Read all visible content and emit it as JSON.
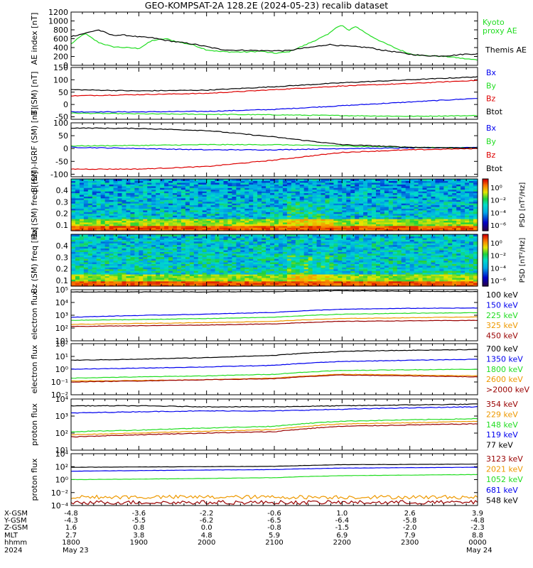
{
  "title": "GEO-KOMPSAT-2A 128.2E (2024-05-23) recalib dataset",
  "colors": {
    "black": "#000000",
    "green": "#22dd22",
    "blue": "#0000ee",
    "red": "#dd0000",
    "orange": "#ee9900",
    "darkred": "#990000"
  },
  "chart_data": [
    {
      "type": "line",
      "ylabel": "AE index [nT]",
      "ylim": [
        0,
        1200
      ],
      "yticks": [
        "0",
        "200",
        "400",
        "600",
        "800",
        "1000",
        "1200"
      ],
      "series": [
        {
          "name": "Kyoto proxy AE",
          "color": "green",
          "x": [
            18.0,
            18.2,
            18.4,
            18.6,
            18.8,
            19.0,
            19.2,
            19.4,
            19.6,
            19.8,
            20.0,
            20.2,
            20.4,
            20.6,
            20.8,
            21.0,
            21.2,
            21.4,
            21.6,
            21.8,
            21.9,
            22.0,
            22.1,
            22.2,
            22.3,
            22.4,
            22.6,
            22.8,
            23.0,
            23.2,
            23.4,
            23.6,
            23.8,
            24.0
          ],
          "y": [
            480,
            720,
            520,
            420,
            400,
            380,
            560,
            600,
            520,
            460,
            350,
            310,
            300,
            300,
            320,
            270,
            300,
            420,
            560,
            700,
            850,
            900,
            780,
            880,
            780,
            680,
            520,
            380,
            260,
            220,
            210,
            190,
            150,
            120
          ]
        },
        {
          "name": "Themis AE",
          "color": "black",
          "x": [
            18.0,
            18.2,
            18.4,
            18.6,
            18.8,
            19.0,
            19.2,
            19.4,
            19.6,
            19.8,
            20.0,
            20.2,
            20.4,
            20.6,
            20.8,
            21.0,
            21.2,
            21.4,
            21.6,
            21.8,
            22.0,
            22.2,
            22.4,
            22.6,
            22.8,
            23.0,
            23.2,
            23.4,
            23.6,
            23.8,
            24.0
          ],
          "y": [
            650,
            720,
            800,
            680,
            680,
            640,
            620,
            560,
            520,
            480,
            420,
            360,
            340,
            340,
            330,
            330,
            330,
            380,
            420,
            470,
            440,
            420,
            400,
            340,
            300,
            250,
            220,
            210,
            220,
            250,
            260
          ]
        }
      ],
      "legend": [
        "Kyoto proxy AE",
        "Themis AE"
      ]
    },
    {
      "type": "line",
      "ylabel": "B (SM) [nT]",
      "ylim": [
        -60,
        150
      ],
      "yticks": [
        "-50",
        "0",
        "50",
        "100",
        "150"
      ],
      "series": [
        {
          "name": "Bx",
          "color": "blue",
          "x": [
            18,
            19,
            20,
            21,
            22,
            23,
            24
          ],
          "y": [
            -30,
            -30,
            -28,
            -20,
            -5,
            10,
            25
          ]
        },
        {
          "name": "By",
          "color": "green",
          "x": [
            18,
            19,
            20,
            21,
            22,
            23,
            24
          ],
          "y": [
            -35,
            -38,
            -40,
            -42,
            -45,
            -48,
            -45
          ]
        },
        {
          "name": "Bz",
          "color": "red",
          "x": [
            18,
            19,
            20,
            21,
            22,
            23,
            24
          ],
          "y": [
            35,
            40,
            45,
            60,
            75,
            85,
            98
          ]
        },
        {
          "name": "Btot",
          "color": "black",
          "x": [
            18,
            19,
            20,
            21,
            22,
            23,
            24
          ],
          "y": [
            60,
            55,
            58,
            72,
            88,
            100,
            112
          ]
        }
      ],
      "legend": [
        "Bx",
        "By",
        "Bz",
        "Btot"
      ]
    },
    {
      "type": "line",
      "ylabel": "B (SM)-IGRF (SM) [nT]",
      "ylim": [
        -110,
        100
      ],
      "yticks": [
        "-100",
        "-50",
        "0",
        "50",
        "100"
      ],
      "series": [
        {
          "name": "Bx",
          "color": "blue",
          "x": [
            18,
            19,
            20,
            21,
            22,
            23,
            24
          ],
          "y": [
            5,
            0,
            -5,
            -5,
            0,
            2,
            5
          ]
        },
        {
          "name": "By",
          "color": "green",
          "x": [
            18,
            19,
            20,
            21,
            22,
            23,
            24
          ],
          "y": [
            10,
            12,
            15,
            15,
            10,
            5,
            2
          ]
        },
        {
          "name": "Bz",
          "color": "red",
          "x": [
            18,
            19,
            20,
            21,
            22,
            23,
            24
          ],
          "y": [
            -80,
            -80,
            -70,
            -45,
            -15,
            -5,
            0
          ]
        },
        {
          "name": "Btot",
          "color": "black",
          "x": [
            18,
            19,
            20,
            21,
            22,
            23,
            24
          ],
          "y": [
            80,
            78,
            70,
            45,
            15,
            5,
            2
          ]
        }
      ],
      "legend": [
        "Bx",
        "By",
        "Bz",
        "Btot"
      ]
    },
    {
      "type": "heatmap",
      "ylabel": "Bx (SM) freq [Hz]",
      "ylim": [
        0.05,
        0.5
      ],
      "yticks": [
        "0.1",
        "0.2",
        "0.3",
        "0.4"
      ],
      "colorbar": {
        "label": "PSD [nT²/Hz]",
        "ticks": [
          "10⁰",
          "10⁻²",
          "10⁻⁴",
          "10⁻⁶"
        ]
      }
    },
    {
      "type": "heatmap",
      "ylabel": "Bz (SM) freq [Hz]",
      "ylim": [
        0.05,
        0.5
      ],
      "yticks": [
        "0.1",
        "0.2",
        "0.3",
        "0.4"
      ],
      "colorbar": {
        "label": "PSD [nT²/Hz]",
        "ticks": [
          "10⁰",
          "10⁻²",
          "10⁻⁴",
          "10⁻⁶"
        ]
      }
    },
    {
      "type": "line",
      "ylabel": "electron flux",
      "yscale": "log",
      "ylim": [
        1,
        100000
      ],
      "yticks": [
        "10¹",
        "10²",
        "10³",
        "10⁴",
        "10⁵"
      ],
      "series": [
        {
          "name": "100 keV",
          "color": "black",
          "x": [
            18,
            19,
            20,
            21,
            22,
            23,
            24
          ],
          "y": [
            60000,
            60000,
            60000,
            65000,
            80000,
            70000,
            65000
          ]
        },
        {
          "name": "150 keV",
          "color": "blue",
          "x": [
            18,
            19,
            20,
            21,
            22,
            23,
            24
          ],
          "y": [
            200,
            300,
            400,
            600,
            1200,
            1500,
            1600
          ]
        },
        {
          "name": "225 keV",
          "color": "green",
          "x": [
            18,
            19,
            20,
            21,
            22,
            23,
            24
          ],
          "y": [
            100,
            120,
            150,
            200,
            400,
            500,
            550
          ]
        },
        {
          "name": "325 keV",
          "color": "orange",
          "x": [
            18,
            19,
            20,
            21,
            22,
            23,
            24
          ],
          "y": [
            40,
            50,
            60,
            80,
            150,
            180,
            220
          ]
        },
        {
          "name": "450 keV",
          "color": "darkred",
          "x": [
            18,
            19,
            20,
            21,
            22,
            23,
            24
          ],
          "y": [
            25,
            30,
            35,
            45,
            80,
            90,
            100
          ]
        }
      ],
      "legend": [
        "100 keV",
        "150 keV",
        "225 keV",
        "325 keV",
        "450 keV"
      ]
    },
    {
      "type": "line",
      "ylabel": "electron flux",
      "yscale": "log",
      "ylim": [
        0.01,
        100
      ],
      "yticks": [
        "10⁻²",
        "10⁻¹",
        "10⁰",
        "10¹",
        "10²"
      ],
      "series": [
        {
          "name": "700 keV",
          "color": "black",
          "x": [
            18,
            19,
            20,
            21,
            22,
            23,
            24
          ],
          "y": [
            5,
            6,
            8,
            12,
            25,
            30,
            35
          ]
        },
        {
          "name": "1350 keV",
          "color": "blue",
          "x": [
            18,
            19,
            20,
            21,
            22,
            23,
            24
          ],
          "y": [
            1,
            1.2,
            1.5,
            2,
            4,
            5,
            6
          ]
        },
        {
          "name": "1800 keV",
          "color": "green",
          "x": [
            18,
            19,
            20,
            21,
            22,
            23,
            24
          ],
          "y": [
            0.2,
            0.25,
            0.3,
            0.4,
            0.8,
            0.9,
            1
          ]
        },
        {
          "name": "2600 keV",
          "color": "orange",
          "x": [
            18,
            19,
            20,
            21,
            22,
            23,
            24
          ],
          "y": [
            0.12,
            0.13,
            0.15,
            0.2,
            0.4,
            0.35,
            0.3
          ]
        },
        {
          "name": ">2000 keV",
          "color": "darkred",
          "x": [
            18,
            19,
            20,
            21,
            22,
            23,
            24
          ],
          "y": [
            0.1,
            0.12,
            0.15,
            0.18,
            0.35,
            0.3,
            0.25
          ]
        }
      ],
      "legend": [
        "700 keV",
        "1350 keV",
        "1800 keV",
        "2600 keV",
        ">2000 keV"
      ]
    },
    {
      "type": "line",
      "ylabel": "proton flux",
      "yscale": "log",
      "ylim": [
        10,
        10000
      ],
      "yticks": [
        "10¹",
        "10²",
        "10³",
        "10⁴"
      ],
      "series": [
        {
          "name": "354 keV",
          "color": "darkred",
          "x": [
            18,
            19,
            20,
            21,
            22,
            23,
            24
          ],
          "y": [
            60,
            80,
            100,
            120,
            250,
            300,
            350
          ]
        },
        {
          "name": "229 keV",
          "color": "orange",
          "x": [
            18,
            19,
            20,
            21,
            22,
            23,
            24
          ],
          "y": [
            80,
            100,
            130,
            160,
            350,
            400,
            500
          ]
        },
        {
          "name": "148 keV",
          "color": "green",
          "x": [
            18,
            19,
            20,
            21,
            22,
            23,
            24
          ],
          "y": [
            120,
            150,
            200,
            250,
            500,
            600,
            700
          ]
        },
        {
          "name": "119 keV",
          "color": "blue",
          "x": [
            18,
            19,
            20,
            21,
            22,
            23,
            24
          ],
          "y": [
            1500,
            1800,
            2000,
            2000,
            2500,
            3000,
            3500
          ]
        },
        {
          "name": "77 keV",
          "color": "black",
          "x": [
            18,
            19,
            20,
            21,
            22,
            23,
            24
          ],
          "y": [
            4000,
            4000,
            3500,
            3500,
            4000,
            4500,
            5000
          ]
        }
      ],
      "legend": [
        "354 keV",
        "229 keV",
        "148 keV",
        "119 keV",
        "77 keV"
      ]
    },
    {
      "type": "line",
      "ylabel": "proton flux",
      "yscale": "log",
      "ylim": [
        0.0001,
        10000
      ],
      "yticks": [
        "10⁻⁴",
        "10⁻²",
        "10⁰",
        "10²",
        "10⁴"
      ],
      "series": [
        {
          "name": "3123 keV",
          "color": "darkred",
          "x": [
            18,
            19,
            20,
            21,
            22,
            23,
            24
          ],
          "y": [
            0.0003,
            0.0003,
            0.0003,
            0.0003,
            0.0003,
            0.0003,
            0.0003
          ]
        },
        {
          "name": "2021 keV",
          "color": "orange",
          "x": [
            18,
            19,
            20,
            21,
            22,
            23,
            24
          ],
          "y": [
            0.002,
            0.002,
            0.002,
            0.002,
            0.002,
            0.002,
            0.002
          ]
        },
        {
          "name": "1052 keV",
          "color": "green",
          "x": [
            18,
            19,
            20,
            21,
            22,
            23,
            24
          ],
          "y": [
            1,
            1.2,
            1.5,
            2,
            4,
            5,
            6
          ]
        },
        {
          "name": "681 keV",
          "color": "blue",
          "x": [
            18,
            19,
            20,
            21,
            22,
            23,
            24
          ],
          "y": [
            20,
            25,
            30,
            35,
            60,
            70,
            80
          ]
        },
        {
          "name": "548 keV",
          "color": "black",
          "x": [
            18,
            19,
            20,
            21,
            22,
            23,
            24
          ],
          "y": [
            80,
            90,
            100,
            110,
            200,
            220,
            250
          ]
        }
      ],
      "legend": [
        "3123 keV",
        "2021 keV",
        "1052 keV",
        "681 keV",
        "548 keV"
      ]
    }
  ],
  "x_axis": {
    "xlim": [
      18,
      24
    ],
    "row_labels": [
      "X-GSM",
      "Y-GSM",
      "Z-GSM",
      "MLT",
      "hhmm",
      "2024"
    ],
    "ticks": [
      {
        "x": 18,
        "rows": [
          "-4.8",
          "-4.3",
          "1.6",
          "2.7",
          "1800",
          "May 23"
        ]
      },
      {
        "x": 19,
        "rows": [
          "-3.6",
          "-5.5",
          "0.8",
          "3.8",
          "1900",
          ""
        ]
      },
      {
        "x": 20,
        "rows": [
          "-2.2",
          "-6.2",
          "0.0",
          "4.8",
          "2000",
          ""
        ]
      },
      {
        "x": 21,
        "rows": [
          "-0.6",
          "-6.5",
          "-0.8",
          "5.9",
          "2100",
          ""
        ]
      },
      {
        "x": 22,
        "rows": [
          "1.0",
          "-6.4",
          "-1.5",
          "6.9",
          "2200",
          ""
        ]
      },
      {
        "x": 23,
        "rows": [
          "2.6",
          "-5.8",
          "-2.0",
          "7.9",
          "2300",
          ""
        ]
      },
      {
        "x": 24,
        "rows": [
          "3.9",
          "-4.8",
          "-2.3",
          "8.8",
          "0000",
          "May 24"
        ]
      }
    ]
  }
}
